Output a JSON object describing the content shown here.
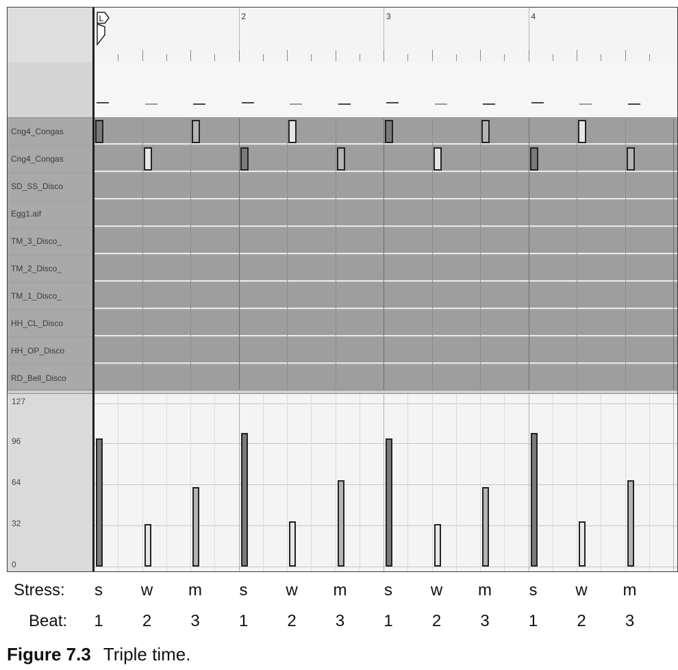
{
  "ruler": {
    "marker_label": "L",
    "bars": [
      "2",
      "3",
      "4"
    ]
  },
  "tracks": [
    "Cng4_Congas",
    "Cng4_Congas",
    "SD_SS_Disco",
    "Egg1.aif",
    "TM_3_Disco_",
    "TM_2_Disco_",
    "TM_1_Disco_",
    "HH_CL_Disco",
    "HH_OP_Disco",
    "RD_Bell_Disco"
  ],
  "velocity_axis": {
    "labels": [
      "127",
      "96",
      "64",
      "32",
      "0"
    ],
    "max": 127
  },
  "colors": {
    "strong": "#7a7a7a",
    "medium": "#b4b4b4",
    "weak": "#e6e6e6"
  },
  "notes": [
    {
      "step": 0,
      "lane": 0,
      "stress": "s",
      "velocity": 100
    },
    {
      "step": 1,
      "lane": 1,
      "stress": "w",
      "velocity": 33
    },
    {
      "step": 2,
      "lane": 0,
      "stress": "m",
      "velocity": 62
    },
    {
      "step": 3,
      "lane": 1,
      "stress": "s",
      "velocity": 104
    },
    {
      "step": 4,
      "lane": 0,
      "stress": "w",
      "velocity": 35
    },
    {
      "step": 5,
      "lane": 1,
      "stress": "m",
      "velocity": 67
    },
    {
      "step": 6,
      "lane": 0,
      "stress": "s",
      "velocity": 100
    },
    {
      "step": 7,
      "lane": 1,
      "stress": "w",
      "velocity": 33
    },
    {
      "step": 8,
      "lane": 0,
      "stress": "m",
      "velocity": 62
    },
    {
      "step": 9,
      "lane": 1,
      "stress": "s",
      "velocity": 104
    },
    {
      "step": 10,
      "lane": 0,
      "stress": "w",
      "velocity": 35
    },
    {
      "step": 11,
      "lane": 1,
      "stress": "m",
      "velocity": 67
    }
  ],
  "stress_row": {
    "label": "Stress:",
    "values": [
      "s",
      "w",
      "m",
      "s",
      "w",
      "m",
      "s",
      "w",
      "m",
      "s",
      "w",
      "m"
    ]
  },
  "beat_row": {
    "label": "Beat:",
    "values": [
      "1",
      "2",
      "3",
      "1",
      "2",
      "3",
      "1",
      "2",
      "3",
      "1",
      "2",
      "3"
    ]
  },
  "caption": {
    "number": "Figure 7.3",
    "text": "Triple time."
  }
}
